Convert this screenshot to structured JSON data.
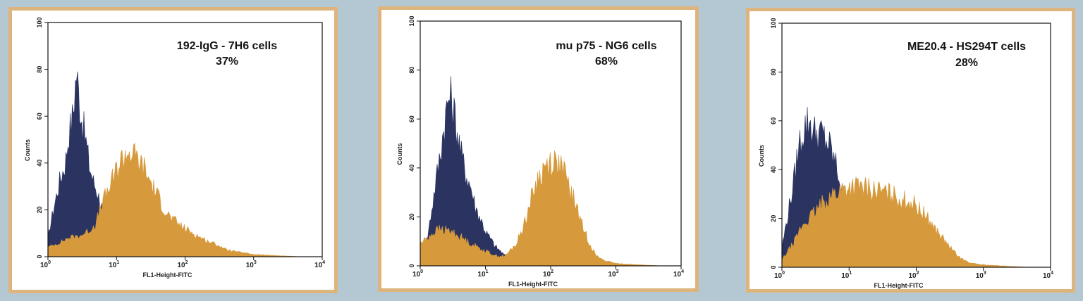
{
  "colors": {
    "background": "#b3c8d3",
    "frame": "#ddb57c",
    "control": "#2b3361",
    "stained": "#d69a3c"
  },
  "chart_data": [
    {
      "type": "area",
      "title": "192-IgG - 7H6 cells",
      "value_label": "37%",
      "xlabel": "FL1-Height-FITC",
      "ylabel": "Counts",
      "x_scale": "log",
      "xlim": [
        1,
        10000
      ],
      "ylim": [
        0,
        100
      ],
      "x_ticks": [
        {
          "base": "10",
          "exp": "0"
        },
        {
          "base": "10",
          "exp": "1"
        },
        {
          "base": "10",
          "exp": "2"
        },
        {
          "base": "10",
          "exp": "3"
        },
        {
          "base": "10",
          "exp": "4"
        }
      ],
      "y_ticks": [
        "0",
        "20",
        "40",
        "60",
        "80",
        "100"
      ],
      "grid": false,
      "series": [
        {
          "color": "#2b3361",
          "x": [
            1,
            1.2,
            1.5,
            1.8,
            2.0,
            2.3,
            2.6,
            2.9,
            3.2,
            3.6,
            4.0,
            4.6,
            5.2,
            6,
            7,
            8,
            10,
            13,
            16
          ],
          "values": [
            8,
            20,
            33,
            40,
            52,
            60,
            79,
            66,
            57,
            49,
            39,
            32,
            28,
            22,
            17,
            12,
            8,
            4,
            0
          ]
        },
        {
          "color": "#d69a3c",
          "x": [
            1,
            1.5,
            2,
            3,
            4,
            5,
            6,
            8,
            10,
            12,
            15,
            20,
            25,
            30,
            40,
            50,
            60,
            80,
            100,
            150,
            200,
            300,
            400,
            600,
            1000,
            2000,
            5000
          ],
          "values": [
            4,
            6,
            8,
            9,
            11,
            14,
            22,
            30,
            37,
            42,
            45,
            42,
            38,
            33,
            26,
            20,
            17,
            14,
            12,
            9,
            7,
            5,
            3,
            2,
            1,
            0.5,
            0
          ]
        }
      ]
    },
    {
      "type": "area",
      "title": "mu p75 - NG6 cells",
      "value_label": "68%",
      "xlabel": "FL1-Height-FITC",
      "ylabel": "Counts",
      "x_scale": "log",
      "xlim": [
        1,
        10000
      ],
      "ylim": [
        0,
        100
      ],
      "x_ticks": [
        {
          "base": "10",
          "exp": "0"
        },
        {
          "base": "10",
          "exp": "1"
        },
        {
          "base": "10",
          "exp": "2"
        },
        {
          "base": "10",
          "exp": "3"
        },
        {
          "base": "10",
          "exp": "4"
        }
      ],
      "y_ticks": [
        "0",
        "20",
        "40",
        "60",
        "80",
        "100"
      ],
      "grid": false,
      "series": [
        {
          "color": "#2b3361",
          "x": [
            1,
            1.3,
            1.6,
            2.0,
            2.4,
            2.8,
            3.2,
            3.7,
            4.3,
            5,
            6,
            7,
            8.5,
            10,
            12,
            14,
            17,
            20,
            25
          ],
          "values": [
            3,
            12,
            28,
            45,
            60,
            70,
            65,
            55,
            45,
            38,
            32,
            24,
            19,
            14,
            11,
            8,
            6,
            4,
            0
          ]
        },
        {
          "color": "#d69a3c",
          "x": [
            1,
            1.5,
            2,
            3,
            4,
            6,
            10,
            15,
            20,
            30,
            40,
            50,
            60,
            80,
            100,
            130,
            160,
            200,
            250,
            300,
            400,
            500,
            700,
            1000,
            2000,
            5000
          ],
          "values": [
            9,
            13,
            15,
            14,
            12,
            9,
            6,
            4,
            4,
            9,
            18,
            27,
            34,
            40,
            43,
            42,
            38,
            31,
            24,
            17,
            9,
            4,
            2,
            1,
            0.5,
            0
          ]
        }
      ]
    },
    {
      "type": "area",
      "title": "ME20.4 - HS294T cells",
      "value_label": "28%",
      "xlabel": "FL1-Height-FITC",
      "ylabel": "Counts",
      "x_scale": "log",
      "xlim": [
        1,
        10000
      ],
      "ylim": [
        0,
        100
      ],
      "x_ticks": [
        {
          "base": "10",
          "exp": "0"
        },
        {
          "base": "10",
          "exp": "1"
        },
        {
          "base": "10",
          "exp": "2"
        },
        {
          "base": "10",
          "exp": "3"
        },
        {
          "base": "10",
          "exp": "4"
        }
      ],
      "y_ticks": [
        "0",
        "20",
        "40",
        "60",
        "80",
        "100"
      ],
      "grid": false,
      "series": [
        {
          "color": "#2b3361",
          "x": [
            1,
            1.2,
            1.5,
            1.8,
            2.2,
            2.6,
            3.0,
            3.5,
            4.0,
            4.5,
            5,
            6,
            7,
            8,
            9,
            10
          ],
          "values": [
            8,
            20,
            35,
            50,
            58,
            60,
            55,
            55,
            54,
            52,
            50,
            44,
            38,
            30,
            22,
            15
          ]
        },
        {
          "color": "#d69a3c",
          "x": [
            1,
            1.5,
            2,
            3,
            4,
            5,
            6,
            8,
            10,
            15,
            20,
            30,
            40,
            50,
            60,
            80,
            100,
            150,
            200,
            300,
            400,
            500,
            700,
            1000,
            2000,
            5000
          ],
          "values": [
            3,
            10,
            17,
            22,
            26,
            29,
            30,
            32,
            33,
            33,
            32,
            31,
            30,
            29,
            28,
            27,
            25,
            20,
            15,
            9,
            5,
            3,
            1.5,
            1,
            0.5,
            0
          ]
        }
      ]
    }
  ]
}
